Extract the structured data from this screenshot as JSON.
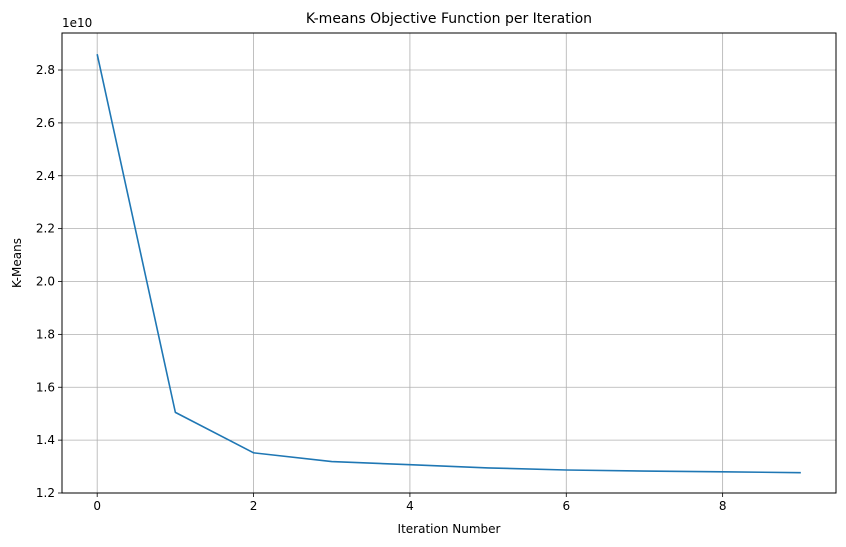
{
  "chart_data": {
    "type": "line",
    "title": "K-means Objective Function per Iteration",
    "xlabel": "Iteration Number",
    "ylabel": "K-Means",
    "y_offset_label": "1e10",
    "xlim": [
      -0.45,
      9.45
    ],
    "ylim": [
      1.2,
      2.94
    ],
    "xticks": [
      0,
      2,
      4,
      6,
      8
    ],
    "yticks": [
      1.2,
      1.4,
      1.6,
      1.8,
      2.0,
      2.2,
      2.4,
      2.6,
      2.8
    ],
    "ytick_labels": [
      "1.2",
      "1.4",
      "1.6",
      "1.8",
      "2.0",
      "2.2",
      "2.4",
      "2.6",
      "2.8"
    ],
    "grid": true,
    "series": [
      {
        "x": [
          0,
          1,
          2,
          3,
          4,
          5,
          6,
          7,
          8,
          9
        ],
        "values": [
          2.86,
          1.505,
          1.352,
          1.319,
          1.307,
          1.295,
          1.287,
          1.283,
          1.28,
          1.277
        ],
        "color": "#1f77b4"
      }
    ]
  }
}
